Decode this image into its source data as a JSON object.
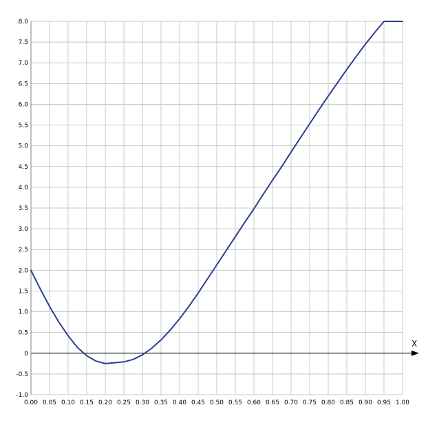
{
  "chart_data": {
    "type": "line",
    "title": "",
    "xlabel": "X",
    "ylabel": "",
    "xlim": [
      0,
      1
    ],
    "ylim": [
      -1,
      8
    ],
    "x_ticks": [
      "0.00",
      "0.05",
      "0.10",
      "0.15",
      "0.20",
      "0.25",
      "0.30",
      "0.35",
      "0.40",
      "0.45",
      "0.50",
      "0.55",
      "0.60",
      "0.65",
      "0.70",
      "0.75",
      "0.80",
      "0.85",
      "0.90",
      "0.95",
      "1.00"
    ],
    "y_ticks": [
      "-1.0",
      "-0.5",
      "0",
      "0.5",
      "1.0",
      "1.5",
      "2.0",
      "2.5",
      "3.0",
      "3.5",
      "4.0",
      "4.5",
      "5.0",
      "5.5",
      "6.0",
      "6.5",
      "7.0",
      "7.5",
      "8.0"
    ],
    "grid": true,
    "colors": {
      "line": "#2a3f8f",
      "grid": "#c8c8c8",
      "axis": "#000000"
    },
    "series": [
      {
        "x": [
          0,
          0.025,
          0.05,
          0.075,
          0.1,
          0.125,
          0.15,
          0.175,
          0.2,
          0.225,
          0.25,
          0.275,
          0.3,
          0.325,
          0.35,
          0.375,
          0.4,
          0.425,
          0.45,
          0.475,
          0.5,
          0.525,
          0.55,
          0.575,
          0.6,
          0.625,
          0.65,
          0.675,
          0.7,
          0.725,
          0.75,
          0.775,
          0.8,
          0.825,
          0.85,
          0.875,
          0.9,
          0.925,
          0.95,
          0.975,
          1
        ],
        "y": [
          2,
          1.55,
          1.13,
          0.75,
          0.42,
          0.14,
          -0.06,
          -0.19,
          -0.25,
          -0.23,
          -0.21,
          -0.15,
          -0.04,
          0.12,
          0.32,
          0.56,
          0.83,
          1.13,
          1.45,
          1.79,
          2.13,
          2.47,
          2.81,
          3.15,
          3.48,
          3.83,
          4.17,
          4.5,
          4.85,
          5.19,
          5.53,
          5.87,
          6.2,
          6.52,
          6.84,
          7.15,
          7.45,
          7.73,
          8,
          8.0,
          8
        ]
      }
    ]
  }
}
